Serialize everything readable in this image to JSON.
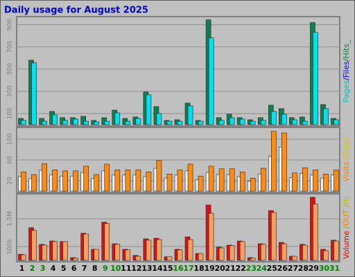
{
  "chart_data": [
    {
      "type": "bar",
      "title": "Daily usage for August 2025",
      "side_label": [
        {
          "text": "Pages",
          "color": "#00c0c0"
        },
        {
          "text": "/Files",
          "color": "#0000ff"
        },
        {
          "text": "/Hits_",
          "color": "#008040"
        }
      ],
      "ylim": [
        0,
        960
      ],
      "yticks": [
        100,
        300,
        500,
        700,
        900
      ],
      "grid": true,
      "series": [
        {
          "name": "Hits",
          "color": "#108050",
          "values": [
            56,
            580,
            56,
            119,
            63,
            63,
            75,
            38,
            63,
            131,
            56,
            69,
            294,
            163,
            38,
            44,
            194,
            38,
            944,
            63,
            94,
            63,
            44,
            63,
            175,
            144,
            63,
            69,
            919,
            181,
            56
          ]
        },
        {
          "name": "Pages",
          "color": "#00e0f0",
          "values": [
            38,
            556,
            31,
            88,
            38,
            50,
            31,
            25,
            31,
            106,
            31,
            56,
            269,
            100,
            31,
            31,
            169,
            31,
            781,
            38,
            63,
            50,
            31,
            38,
            119,
            94,
            44,
            31,
            831,
            144,
            44
          ]
        }
      ]
    },
    {
      "type": "bar",
      "side_label": [
        {
          "text": "Visits",
          "color": "#ff8000"
        },
        {
          "text": " /Sites",
          "color": "#e0c000"
        }
      ],
      "ylim": [
        0,
        120
      ],
      "yticks": [
        20,
        60,
        100
      ],
      "grid": true,
      "series": [
        {
          "name": "Sites",
          "color": "#f0f0f0",
          "values": [
            28,
            24,
            40,
            31,
            29,
            29,
            36,
            24,
            39,
            31,
            31,
            31,
            28,
            44,
            25,
            31,
            39,
            22,
            36,
            32,
            32,
            28,
            19,
            33,
            67,
            85,
            26,
            34,
            31,
            25,
            31
          ]
        },
        {
          "name": "Visits",
          "color": "#ff8c10",
          "values": [
            37,
            32,
            53,
            41,
            39,
            39,
            48,
            32,
            52,
            41,
            41,
            41,
            37,
            59,
            33,
            41,
            52,
            29,
            48,
            43,
            43,
            37,
            25,
            44,
            115,
            112,
            35,
            45,
            41,
            33,
            41
          ]
        }
      ]
    },
    {
      "type": "bar",
      "side_label": [
        {
          "text": "Volume",
          "color": "#e00000"
        },
        {
          "text": "  /",
          "color": "#c0a000"
        },
        {
          "text": "OUT",
          "color": "#ff8000"
        },
        {
          "text": " /",
          "color": "#c0a000"
        },
        {
          "text": "IN",
          "color": "#c0c000"
        }
      ],
      "ylim": [
        0,
        2350000
      ],
      "yticks": [
        {
          "value": 500000,
          "label": "500k"
        },
        {
          "value": 1500000,
          "label": "1.5M"
        }
      ],
      "grid": true,
      "categories": [
        "1",
        "2",
        "3",
        "4",
        "5",
        "6",
        "7",
        "8",
        "9",
        "10",
        "11",
        "12",
        "13",
        "14",
        "15",
        "16",
        "17",
        "18",
        "19",
        "20",
        "21",
        "22",
        "23",
        "24",
        "25",
        "26",
        "27",
        "28",
        "29",
        "30",
        "31"
      ],
      "category_colors": [
        "#000000",
        "#008000",
        "#008000",
        "#000000",
        "#000000",
        "#000000",
        "#000000",
        "#000000",
        "#008000",
        "#008000",
        "#000000",
        "#000000",
        "#000000",
        "#000000",
        "#000000",
        "#008000",
        "#008000",
        "#000000",
        "#000000",
        "#000000",
        "#000000",
        "#000000",
        "#008000",
        "#008000",
        "#000000",
        "#000000",
        "#000000",
        "#000000",
        "#000000",
        "#008000",
        "#008000"
      ],
      "series": [
        {
          "name": "Volume",
          "color": "#e01010",
          "values": [
            220000,
            1180000,
            580000,
            700000,
            680000,
            100000,
            980000,
            400000,
            1380000,
            600000,
            400000,
            180000,
            780000,
            800000,
            130000,
            400000,
            850000,
            250000,
            2000000,
            480000,
            550000,
            700000,
            100000,
            600000,
            1800000,
            650000,
            150000,
            580000,
            2280000,
            400000,
            730000
          ]
        },
        {
          "name": "OUT",
          "color": "#f4a060",
          "values": [
            200000,
            1080000,
            550000,
            680000,
            680000,
            80000,
            950000,
            400000,
            1330000,
            580000,
            380000,
            150000,
            730000,
            750000,
            130000,
            380000,
            750000,
            250000,
            1700000,
            450000,
            530000,
            680000,
            80000,
            580000,
            1730000,
            600000,
            150000,
            550000,
            2030000,
            350000,
            700000
          ]
        }
      ]
    }
  ]
}
